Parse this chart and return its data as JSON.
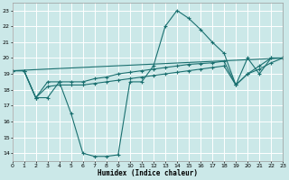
{
  "bg_color": "#cbe8e8",
  "grid_color": "#ffffff",
  "line_color": "#1a7070",
  "xlabel": "Humidex (Indice chaleur)",
  "xlim": [
    0,
    23
  ],
  "ylim": [
    13.5,
    23.5
  ],
  "ytick_vals": [
    14,
    15,
    16,
    17,
    18,
    19,
    20,
    21,
    22,
    23
  ],
  "xtick_vals": [
    0,
    1,
    2,
    3,
    4,
    5,
    6,
    7,
    8,
    9,
    10,
    11,
    12,
    13,
    14,
    15,
    16,
    17,
    18,
    19,
    20,
    21,
    22,
    23
  ],
  "curve1_x": [
    0,
    1,
    2,
    3,
    4,
    5,
    6,
    7,
    8,
    9,
    10,
    11,
    12,
    13,
    14,
    15,
    16,
    17,
    18,
    19,
    20,
    21,
    22,
    23
  ],
  "curve1_y": [
    19.2,
    19.2,
    17.5,
    17.5,
    18.5,
    16.5,
    14.0,
    13.8,
    13.8,
    13.9,
    18.5,
    18.5,
    19.5,
    22.0,
    23.0,
    22.5,
    21.8,
    21.0,
    20.3,
    18.3,
    20.0,
    19.0,
    20.0,
    20.0
  ],
  "curve2_x": [
    0,
    1,
    2,
    3,
    4,
    5,
    6,
    7,
    8,
    9,
    10,
    11,
    12,
    13,
    14,
    15,
    16,
    17,
    18,
    19,
    20,
    21,
    22,
    23
  ],
  "curve2_y": [
    19.2,
    19.2,
    17.5,
    18.5,
    18.5,
    18.5,
    18.5,
    18.7,
    18.8,
    19.0,
    19.1,
    19.2,
    19.3,
    19.4,
    19.5,
    19.6,
    19.65,
    19.7,
    19.8,
    18.3,
    19.0,
    19.5,
    20.0,
    20.0
  ],
  "curve3_x": [
    0,
    1,
    2,
    3,
    4,
    5,
    6,
    7,
    8,
    9,
    10,
    11,
    12,
    13,
    14,
    15,
    16,
    17,
    18,
    19,
    20,
    21,
    22,
    23
  ],
  "curve3_y": [
    19.2,
    19.2,
    17.5,
    18.2,
    18.3,
    18.3,
    18.3,
    18.4,
    18.5,
    18.6,
    18.7,
    18.8,
    18.9,
    19.0,
    19.1,
    19.2,
    19.3,
    19.4,
    19.5,
    18.3,
    19.0,
    19.3,
    19.7,
    20.0
  ],
  "curve4_x": [
    0,
    23
  ],
  "curve4_y": [
    19.2,
    20.0
  ]
}
